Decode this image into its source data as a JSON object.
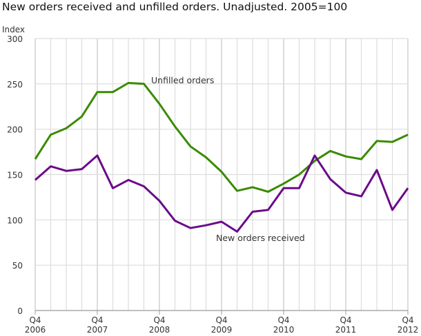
{
  "title": "New orders received and unfilled orders. Unadjusted. 2005=100",
  "chart_data": {
    "type": "line",
    "title": "New orders received and unfilled orders. Unadjusted. 2005=100",
    "ylabel": "Index",
    "ylim": [
      0,
      300
    ],
    "yticks": [
      0,
      50,
      100,
      150,
      200,
      250,
      300
    ],
    "grid": true,
    "xtick_labels": [
      {
        "quarter": "Q4",
        "year": "2006"
      },
      {
        "quarter": "Q4",
        "year": "2007"
      },
      {
        "quarter": "Q4",
        "year": "2008"
      },
      {
        "quarter": "Q4",
        "year": "2009"
      },
      {
        "quarter": "Q4",
        "year": "2010"
      },
      {
        "quarter": "Q4",
        "year": "2011"
      },
      {
        "quarter": "Q4",
        "year": "2012"
      }
    ],
    "x": [
      "2006Q4",
      "2007Q1",
      "2007Q2",
      "2007Q3",
      "2007Q4",
      "2008Q1",
      "2008Q2",
      "2008Q3",
      "2008Q4",
      "2009Q1",
      "2009Q2",
      "2009Q3",
      "2009Q4",
      "2010Q1",
      "2010Q2",
      "2010Q3",
      "2010Q4",
      "2011Q1",
      "2011Q2",
      "2011Q3",
      "2011Q4",
      "2012Q1",
      "2012Q2",
      "2012Q3",
      "2012Q4"
    ],
    "series": [
      {
        "name": "Unfilled orders",
        "color": "#3a8a00",
        "values": [
          167,
          194,
          201,
          214,
          241,
          241,
          251,
          250,
          228,
          203,
          181,
          169,
          153,
          132,
          136,
          131,
          140,
          150,
          165,
          176,
          170,
          167,
          187,
          186,
          194
        ]
      },
      {
        "name": "New orders received",
        "color": "#6a0a8a",
        "values": [
          144,
          159,
          154,
          156,
          171,
          135,
          144,
          137,
          121,
          99,
          91,
          94,
          98,
          87,
          109,
          111,
          135,
          135,
          171,
          145,
          130,
          126,
          155,
          111,
          135
        ]
      }
    ]
  }
}
